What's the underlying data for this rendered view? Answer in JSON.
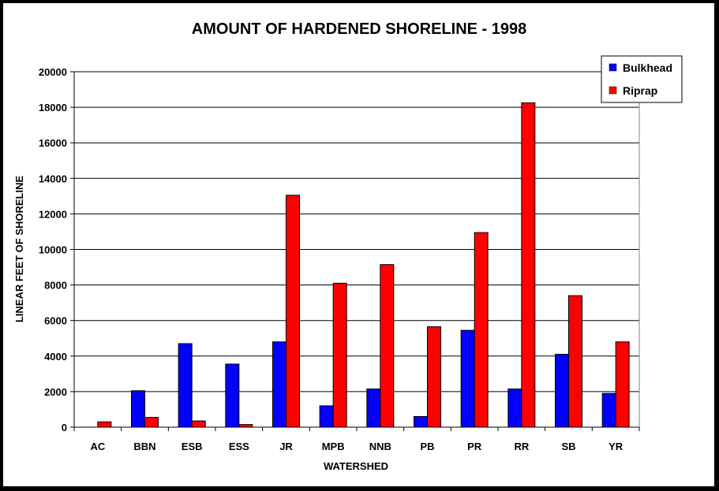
{
  "chart_data": {
    "type": "bar",
    "title": "AMOUNT OF HARDENED SHORELINE - 1998",
    "xlabel": "WATERSHED",
    "ylabel": "LINEAR FEET OF SHORELINE",
    "ylim": [
      0,
      20000
    ],
    "yticks": [
      0,
      2000,
      4000,
      6000,
      8000,
      10000,
      12000,
      14000,
      16000,
      18000,
      20000
    ],
    "grid": true,
    "legend_position": "top-right",
    "categories": [
      "AC",
      "BBN",
      "ESB",
      "ESS",
      "JR",
      "MPB",
      "NNB",
      "PB",
      "PR",
      "RR",
      "SB",
      "YR"
    ],
    "series": [
      {
        "name": "Bulkhead",
        "color": "#0000ff",
        "values": [
          0,
          2050,
          4700,
          3550,
          4800,
          1200,
          2150,
          600,
          5450,
          2150,
          4100,
          1900
        ]
      },
      {
        "name": "Riprap",
        "color": "#ff0000",
        "values": [
          300,
          550,
          350,
          150,
          13050,
          8100,
          9150,
          5650,
          10950,
          18250,
          7400,
          4800
        ]
      }
    ]
  }
}
